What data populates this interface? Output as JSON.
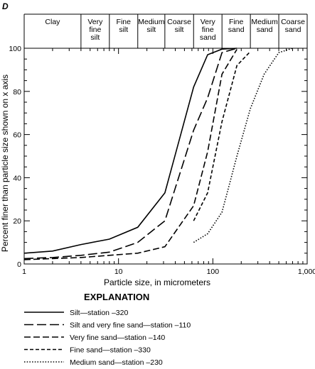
{
  "chart_data": {
    "type": "line",
    "panel_label": "D",
    "xlabel": "Particle size, in micrometers",
    "ylabel": "Percent finer than particle size shown on x axis",
    "x_scale": "log",
    "xlim": [
      1,
      1000
    ],
    "ylim": [
      0,
      100
    ],
    "x_ticks": [
      1,
      10,
      100,
      1000
    ],
    "x_tick_labels": [
      "1",
      "10",
      "100",
      "1,000"
    ],
    "y_ticks": [
      0,
      20,
      40,
      60,
      80,
      100
    ],
    "grid": false,
    "size_classes": [
      {
        "label": "Clay",
        "range": [
          1,
          4
        ]
      },
      {
        "label": "Very fine silt",
        "range": [
          4,
          8
        ]
      },
      {
        "label": "Fine silt",
        "range": [
          8,
          16
        ]
      },
      {
        "label": "Medium silt",
        "range": [
          16,
          31
        ]
      },
      {
        "label": "Coarse silt",
        "range": [
          31,
          62.5
        ]
      },
      {
        "label": "Very fine sand",
        "range": [
          62.5,
          125
        ]
      },
      {
        "label": "Fine sand",
        "range": [
          125,
          250
        ]
      },
      {
        "label": "Medium sand",
        "range": [
          250,
          500
        ]
      },
      {
        "label": "Coarse sand",
        "range": [
          500,
          1000
        ]
      }
    ],
    "legend_title": "EXPLANATION",
    "legend_position": "below",
    "series": [
      {
        "name": "Silt—station –320",
        "style": "solid",
        "points": [
          [
            1,
            5
          ],
          [
            2,
            6
          ],
          [
            4,
            9
          ],
          [
            8,
            11.5
          ],
          [
            16,
            17
          ],
          [
            31,
            33
          ],
          [
            62.5,
            82
          ],
          [
            88,
            97
          ],
          [
            125,
            99.6
          ],
          [
            180,
            100
          ]
        ]
      },
      {
        "name": "Silt and very fine sand—station –110",
        "style": "longdash",
        "points": [
          [
            1,
            2.5
          ],
          [
            2,
            3
          ],
          [
            4,
            4
          ],
          [
            8,
            5.5
          ],
          [
            16,
            10
          ],
          [
            31,
            20
          ],
          [
            62.5,
            62
          ],
          [
            88,
            77
          ],
          [
            125,
            98
          ],
          [
            180,
            100
          ]
        ]
      },
      {
        "name": "Very fine sand—station –140",
        "style": "dash",
        "points": [
          [
            1,
            2
          ],
          [
            2,
            2.5
          ],
          [
            4,
            3
          ],
          [
            8,
            4
          ],
          [
            16,
            5
          ],
          [
            31,
            8
          ],
          [
            62.5,
            27
          ],
          [
            88,
            52
          ],
          [
            125,
            88
          ],
          [
            180,
            99.5
          ]
        ]
      },
      {
        "name": "Fine sand—station –330",
        "style": "shortdash",
        "points": [
          [
            62.5,
            20
          ],
          [
            88,
            33
          ],
          [
            125,
            66
          ],
          [
            180,
            92
          ],
          [
            250,
            98.5
          ]
        ]
      },
      {
        "name": "Medium sand—station –230",
        "style": "dotted",
        "points": [
          [
            62.5,
            10
          ],
          [
            88,
            14
          ],
          [
            125,
            24
          ],
          [
            180,
            50
          ],
          [
            250,
            72
          ],
          [
            350,
            88
          ],
          [
            500,
            98
          ],
          [
            700,
            100
          ]
        ]
      }
    ]
  }
}
